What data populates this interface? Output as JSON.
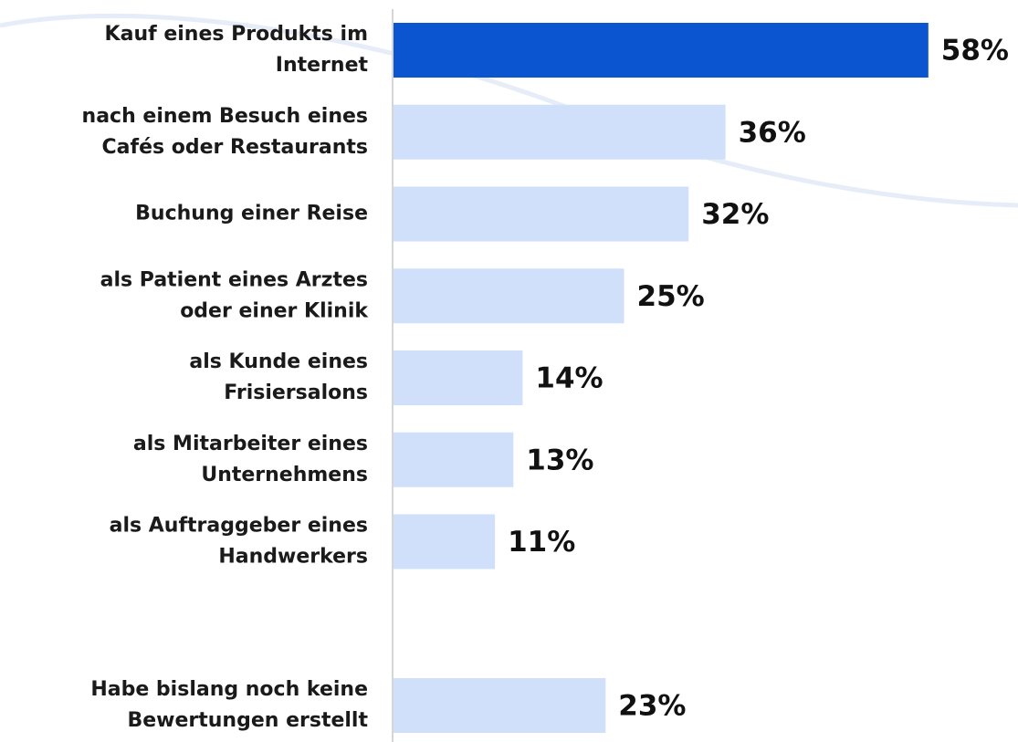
{
  "chart_data": {
    "type": "barh",
    "categories": [
      [
        "Kauf eines Produkts im",
        "Internet"
      ],
      [
        "nach einem Besuch eines",
        "Cafés oder Restaurants"
      ],
      [
        "Buchung einer Reise"
      ],
      [
        "als Patient eines Arztes",
        "oder einer Klinik"
      ],
      [
        "als Kunde eines",
        "Frisiersalons"
      ],
      [
        "als Mitarbeiter eines",
        "Unternehmens"
      ],
      [
        "als Auftraggeber eines",
        "Handwerkers"
      ],
      null,
      [
        "Habe bislang noch keine",
        "Bewertungen erstellt"
      ]
    ],
    "values": [
      58,
      36,
      32,
      25,
      14,
      13,
      11,
      null,
      23
    ],
    "value_labels": [
      "58%",
      "36%",
      "32%",
      "25%",
      "14%",
      "13%",
      "11%",
      null,
      "23%"
    ],
    "colors": [
      "#0b55d0",
      "#d0dffa",
      "#d0dffa",
      "#d0dffa",
      "#d0dffa",
      "#d0dffa",
      "#d0dffa",
      null,
      "#d0dffa"
    ]
  }
}
